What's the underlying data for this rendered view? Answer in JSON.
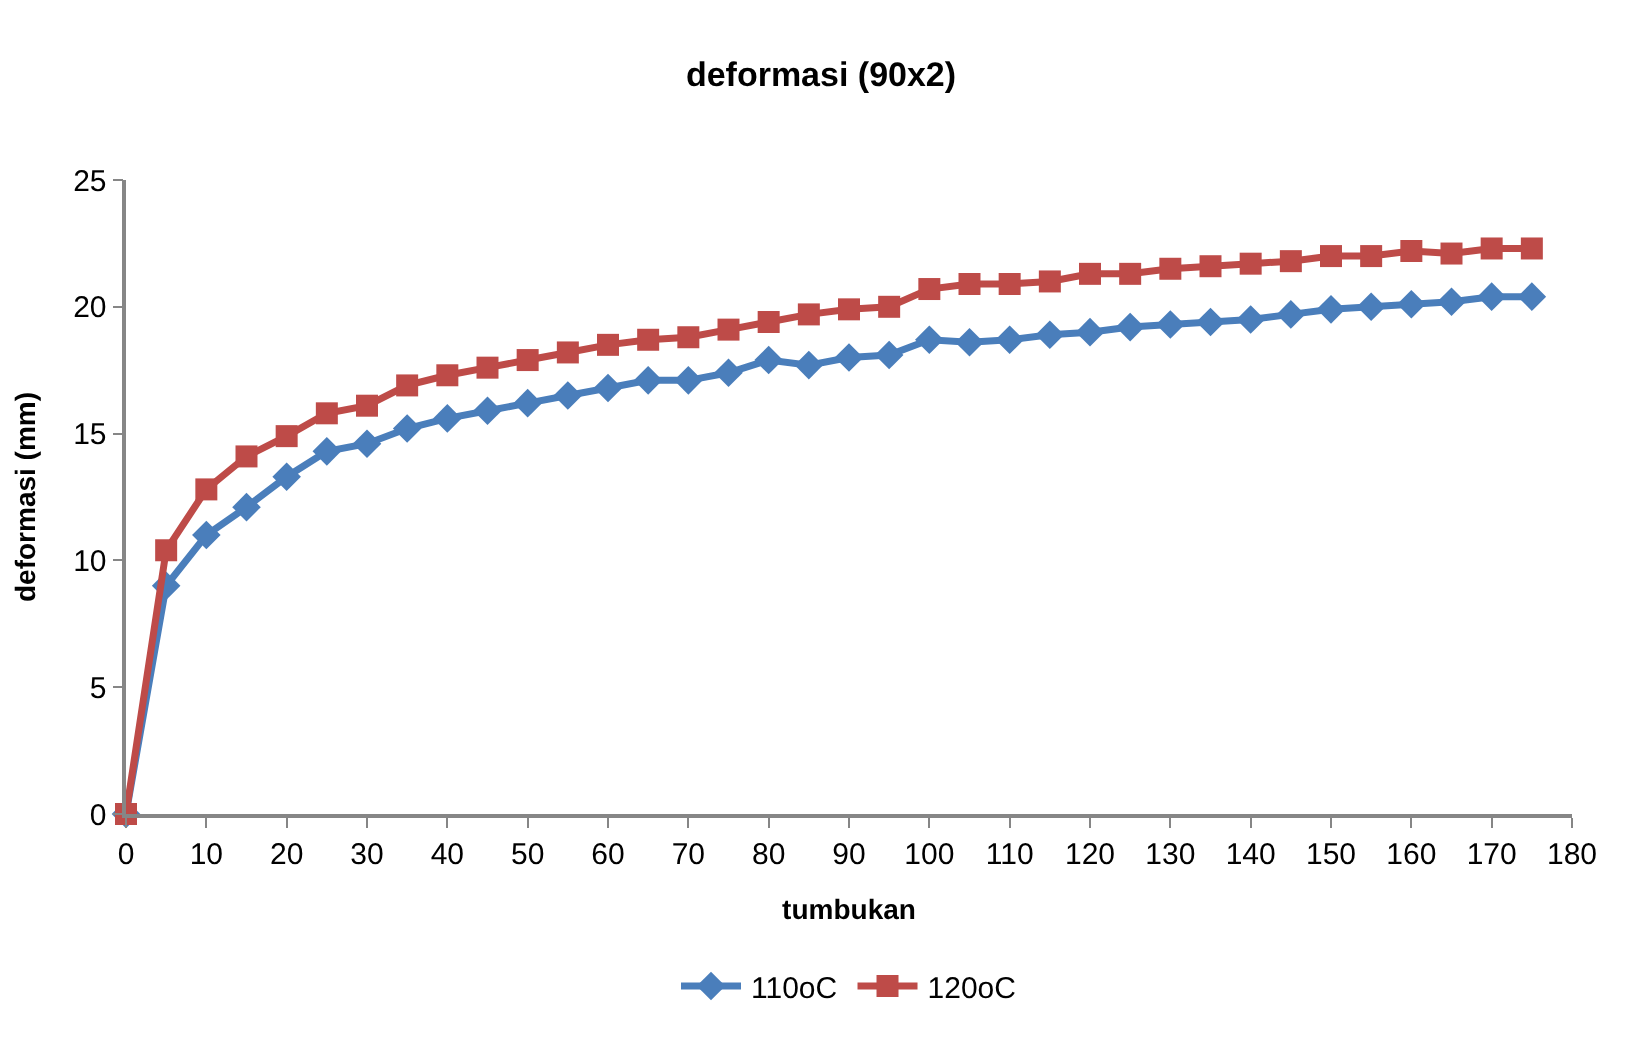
{
  "chart_data": {
    "type": "line",
    "title": "deformasi (90x2)",
    "xlabel": "tumbukan",
    "ylabel": "deformasi (mm)",
    "x": [
      0,
      5,
      10,
      15,
      20,
      25,
      30,
      35,
      40,
      45,
      50,
      55,
      60,
      65,
      70,
      75,
      80,
      85,
      90,
      95,
      100,
      105,
      110,
      115,
      120,
      125,
      130,
      135,
      140,
      145,
      150,
      155,
      160,
      165,
      170,
      175
    ],
    "series": [
      {
        "name": "110oC",
        "color": "#4a7ebb",
        "marker": "diamond",
        "values": [
          0,
          9,
          11,
          12.1,
          13.3,
          14.3,
          14.6,
          15.2,
          15.6,
          15.9,
          16.2,
          16.5,
          16.8,
          17.1,
          17.1,
          17.4,
          17.9,
          17.7,
          18,
          18.1,
          18.7,
          18.6,
          18.7,
          18.9,
          19.0,
          19.2,
          19.3,
          19.4,
          19.5,
          19.7,
          19.9,
          20.0,
          20.1,
          20.2,
          20.4,
          20.4
        ]
      },
      {
        "name": "120oC",
        "color": "#be4b48",
        "marker": "square",
        "values": [
          0,
          10.4,
          12.8,
          14.1,
          14.9,
          15.8,
          16.1,
          16.9,
          17.3,
          17.6,
          17.9,
          18.2,
          18.5,
          18.7,
          18.8,
          19.1,
          19.4,
          19.7,
          19.9,
          20.0,
          20.7,
          20.9,
          20.9,
          21.0,
          21.3,
          21.3,
          21.5,
          21.6,
          21.7,
          21.8,
          22.0,
          22.0,
          22.2,
          22.1,
          22.3,
          22.3
        ]
      }
    ],
    "xlim": [
      0,
      180
    ],
    "xticks": [
      0,
      10,
      20,
      30,
      40,
      50,
      60,
      70,
      80,
      90,
      100,
      110,
      120,
      130,
      140,
      150,
      160,
      170,
      180
    ],
    "ylim": [
      0,
      25
    ],
    "yticks": [
      0,
      5,
      10,
      15,
      20,
      25
    ],
    "grid": false,
    "legend": "bottom"
  }
}
